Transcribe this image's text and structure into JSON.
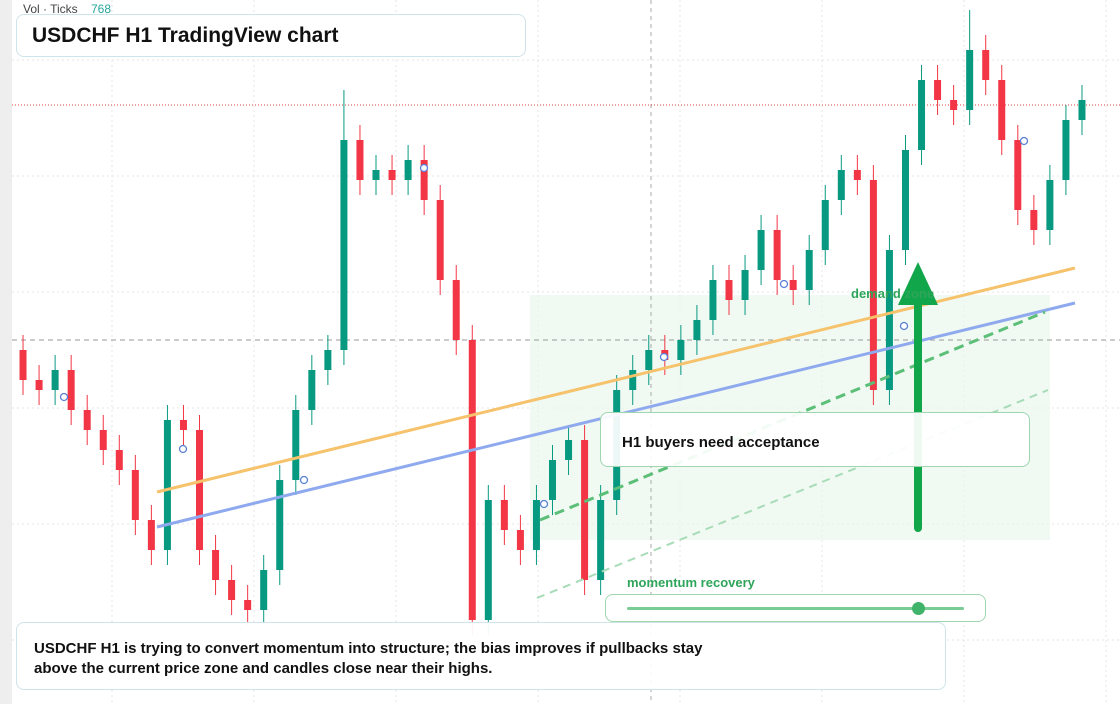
{
  "header": {
    "vol_label": "Vol · Ticks",
    "vol_value": 768,
    "title": "USDCHF H1 TradingView chart"
  },
  "annotations": {
    "zone": "demand zone",
    "callout": "H1 buyers need acceptance",
    "slider": "momentum recovery",
    "summary": "USDCHF H1 is trying to convert momentum into structure; the bias improves if pullbacks stay above the current price zone and candles close near their highs."
  },
  "chart_data": {
    "type": "candlestick",
    "ylim": [
      0.79,
      0.804
    ],
    "up_color": "#089981",
    "down_color": "#f23645",
    "hlines": [
      {
        "value": 0.8019,
        "color": "#e0413f",
        "style": "dotted"
      },
      {
        "value": 0.7972,
        "color": "#9a9a9a",
        "style": "dashed"
      }
    ],
    "open": [
      0.797,
      0.7964,
      0.7962,
      0.7966,
      0.7958,
      0.7954,
      0.795,
      0.7946,
      0.7936,
      0.793,
      0.7956,
      0.7954,
      0.793,
      0.7924,
      0.792,
      0.7918,
      0.7926,
      0.7944,
      0.7958,
      0.7966,
      0.797,
      0.8012,
      0.8004,
      0.8006,
      0.8004,
      0.8008,
      0.8,
      0.7984,
      0.7972,
      0.7916,
      0.794,
      0.7934,
      0.793,
      0.794,
      0.7948,
      0.7952,
      0.7924,
      0.794,
      0.7962,
      0.7966,
      0.797,
      0.7968,
      0.7972,
      0.7976,
      0.7984,
      0.798,
      0.7986,
      0.7994,
      0.7984,
      0.7982,
      0.799,
      0.8,
      0.8006,
      0.8004,
      0.7962,
      0.799,
      0.801,
      0.8024,
      0.802,
      0.8018,
      0.803,
      0.8024,
      0.8012,
      0.7998,
      0.7994,
      0.8004,
      0.8016
    ],
    "high": [
      0.7973,
      0.7967,
      0.7969,
      0.7969,
      0.7961,
      0.7957,
      0.7953,
      0.7949,
      0.7939,
      0.7959,
      0.7959,
      0.7957,
      0.7933,
      0.7927,
      0.7923,
      0.7929,
      0.7947,
      0.7961,
      0.7969,
      0.7973,
      0.8022,
      0.8015,
      0.8009,
      0.8009,
      0.8011,
      0.8011,
      0.8003,
      0.7987,
      0.7975,
      0.7943,
      0.7943,
      0.7937,
      0.7943,
      0.7951,
      0.7955,
      0.7955,
      0.7943,
      0.7965,
      0.7969,
      0.7973,
      0.7973,
      0.7975,
      0.7979,
      0.7987,
      0.7987,
      0.7989,
      0.7997,
      0.7997,
      0.7987,
      0.7993,
      0.8003,
      0.8009,
      0.8009,
      0.8007,
      0.7993,
      0.8013,
      0.8027,
      0.8027,
      0.8023,
      0.8038,
      0.8033,
      0.8027,
      0.8015,
      0.8001,
      0.8007,
      0.8019,
      0.8023
    ],
    "low": [
      0.7961,
      0.7959,
      0.7959,
      0.7955,
      0.7951,
      0.7947,
      0.7943,
      0.7933,
      0.7927,
      0.7927,
      0.7951,
      0.7927,
      0.7921,
      0.7917,
      0.7915,
      0.7915,
      0.7923,
      0.7941,
      0.7955,
      0.7963,
      0.7967,
      0.8001,
      0.8001,
      0.8001,
      0.8001,
      0.7997,
      0.7981,
      0.7969,
      0.7913,
      0.7913,
      0.7931,
      0.7927,
      0.7927,
      0.7937,
      0.7945,
      0.7921,
      0.7921,
      0.7937,
      0.7959,
      0.7963,
      0.7965,
      0.7965,
      0.7969,
      0.7973,
      0.7977,
      0.7977,
      0.7983,
      0.7981,
      0.7979,
      0.7979,
      0.7987,
      0.7997,
      0.8001,
      0.7959,
      0.7959,
      0.7987,
      0.8007,
      0.8017,
      0.8015,
      0.8015,
      0.8021,
      0.8009,
      0.7995,
      0.7991,
      0.7991,
      0.8001,
      0.8013
    ],
    "close": [
      0.7964,
      0.7962,
      0.7966,
      0.7958,
      0.7954,
      0.795,
      0.7946,
      0.7936,
      0.793,
      0.7956,
      0.7954,
      0.793,
      0.7924,
      0.792,
      0.7918,
      0.7926,
      0.7944,
      0.7958,
      0.7966,
      0.797,
      0.8012,
      0.8004,
      0.8006,
      0.8004,
      0.8008,
      0.8,
      0.7984,
      0.7972,
      0.7916,
      0.794,
      0.7934,
      0.793,
      0.794,
      0.7948,
      0.7952,
      0.7924,
      0.794,
      0.7962,
      0.7966,
      0.797,
      0.7968,
      0.7972,
      0.7976,
      0.7984,
      0.798,
      0.7986,
      0.7994,
      0.7984,
      0.7982,
      0.799,
      0.8,
      0.8006,
      0.8004,
      0.7962,
      0.799,
      0.801,
      0.8024,
      0.802,
      0.8018,
      0.803,
      0.8024,
      0.8012,
      0.7998,
      0.7994,
      0.8004,
      0.8016,
      0.802
    ]
  }
}
